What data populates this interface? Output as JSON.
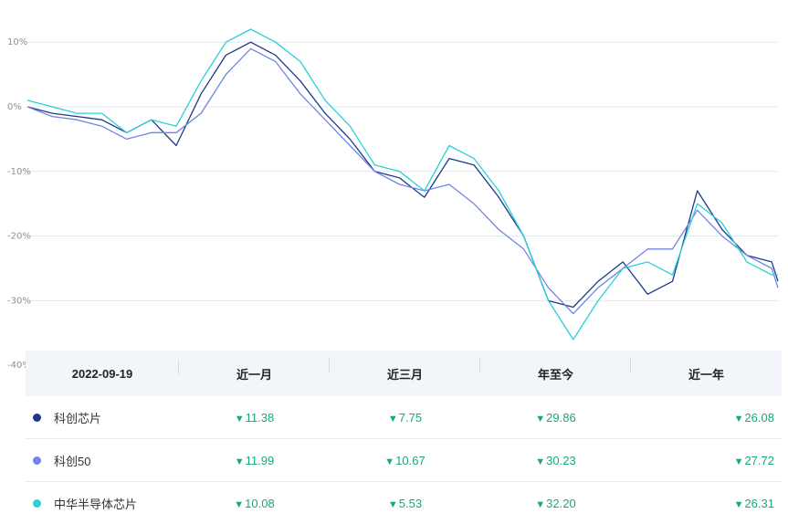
{
  "colors": {
    "s1": "#1d3a8a",
    "s2": "#6f86e6",
    "s3": "#2bd0d8",
    "down": "#19a974"
  },
  "chart_data": {
    "type": "line",
    "ylim": [
      -40,
      12
    ],
    "yticks": [
      10,
      0,
      -10,
      -20,
      -30,
      -40
    ],
    "ytick_labels": [
      "10%",
      "0%",
      "-10%",
      "-20%",
      "-30%",
      "-40%"
    ],
    "x": [
      0,
      8,
      16,
      24,
      32,
      40,
      48,
      56,
      64,
      72,
      80,
      88,
      96,
      104,
      112,
      120,
      128,
      136,
      144,
      152,
      160,
      168,
      176,
      184,
      192,
      200,
      208,
      216,
      224,
      232,
      240,
      242
    ],
    "series": [
      {
        "name": "科创芯片",
        "color": "#1d3a8a",
        "values": [
          0,
          -1,
          -1.5,
          -2,
          -4,
          -2,
          -6,
          2,
          8,
          10,
          8,
          4,
          -1,
          -5,
          -10,
          -11,
          -14,
          -8,
          -9,
          -14,
          -20,
          -30,
          -31,
          -27,
          -24,
          -29,
          -27,
          -13,
          -19,
          -23,
          -24,
          -27
        ]
      },
      {
        "name": "科创50",
        "color": "#6f86e6",
        "values": [
          0,
          -1.5,
          -2,
          -3,
          -5,
          -4,
          -4,
          -1,
          5,
          9,
          7,
          2,
          -2,
          -6,
          -10,
          -12,
          -13,
          -12,
          -15,
          -19,
          -22,
          -28,
          -32,
          -28,
          -25,
          -22,
          -22,
          -16,
          -20,
          -23,
          -25,
          -28
        ]
      },
      {
        "name": "中华半导体芯片",
        "color": "#2bd0d8",
        "values": [
          1,
          0,
          -1,
          -1,
          -4,
          -2,
          -3,
          4,
          10,
          12,
          10,
          7,
          1,
          -3,
          -9,
          -10,
          -13,
          -6,
          -8,
          -13,
          -20,
          -30,
          -36,
          -30,
          -25,
          -24,
          -26,
          -15,
          -18,
          -24,
          -26,
          -26
        ]
      }
    ]
  },
  "table": {
    "date": "2022-09-19",
    "headers": [
      "近一月",
      "近三月",
      "年至今",
      "近一年"
    ],
    "rows": [
      {
        "name": "科创芯片",
        "vals": [
          "11.38",
          "7.75",
          "29.86",
          "26.08"
        ]
      },
      {
        "name": "科创50",
        "vals": [
          "11.99",
          "10.67",
          "30.23",
          "27.72"
        ]
      },
      {
        "name": "中华半导体芯片",
        "vals": [
          "10.08",
          "5.53",
          "32.20",
          "26.31"
        ]
      }
    ]
  }
}
